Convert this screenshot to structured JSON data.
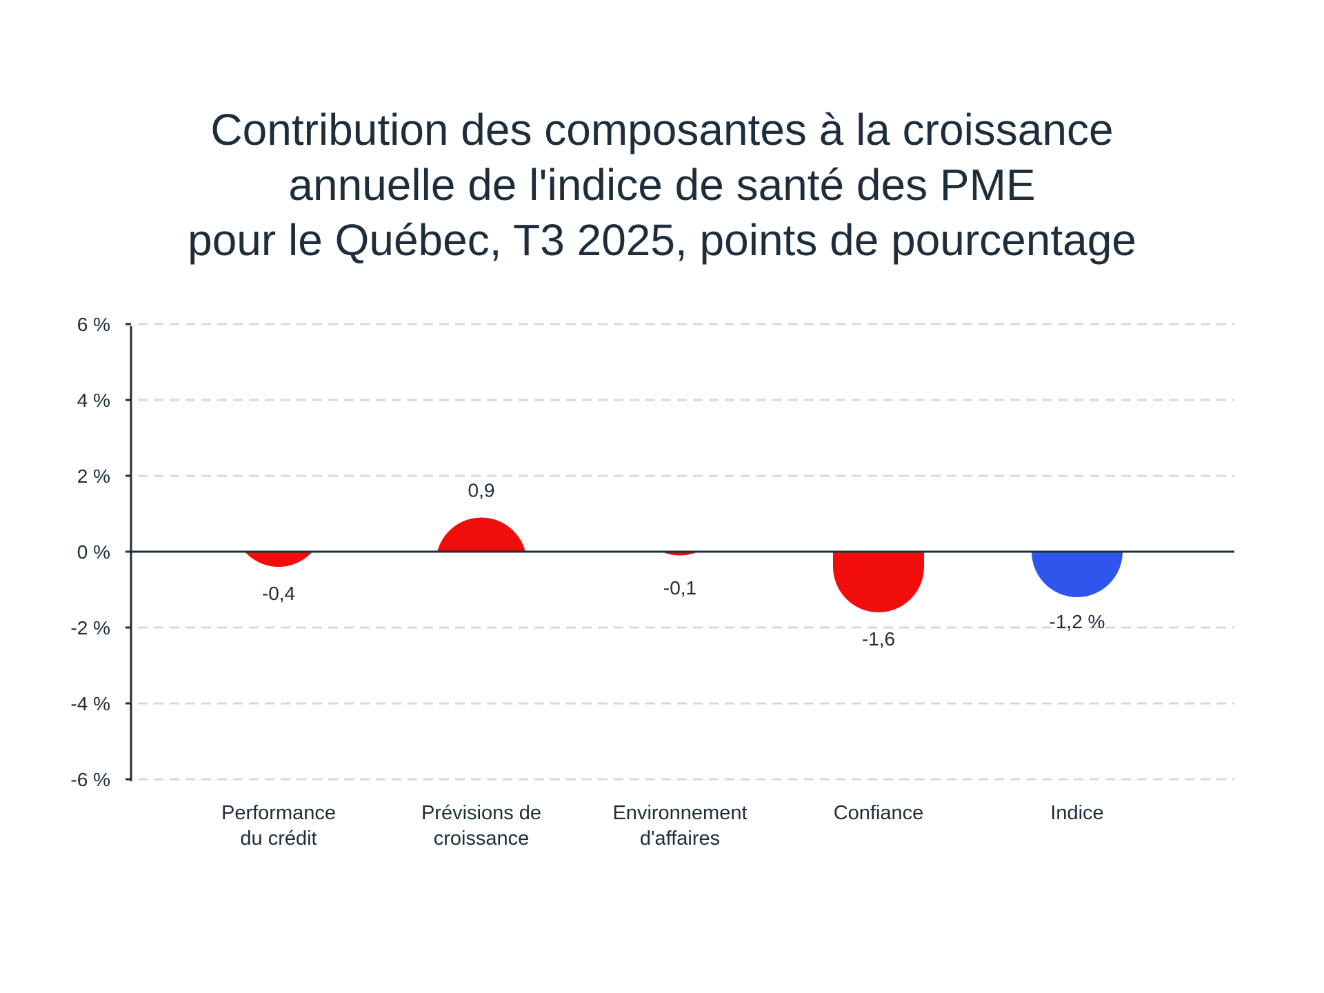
{
  "chart_data": {
    "type": "bar",
    "title_lines": [
      "Contribution des composantes à la croissance",
      "annuelle de l'indice de santé des PME",
      "pour le Québec, T3 2025, points de pourcentage"
    ],
    "categories": [
      [
        "Performance",
        "du crédit"
      ],
      [
        "Prévisions de",
        "croissance"
      ],
      [
        "Environnement",
        "d'affaires"
      ],
      [
        "Confiance"
      ],
      [
        "Indice"
      ]
    ],
    "values": [
      -0.4,
      0.9,
      -0.1,
      -1.6,
      -1.2
    ],
    "data_labels": [
      "-0,4",
      "0,9",
      "-0,1",
      "-1,6",
      "-1,2 %"
    ],
    "y_ticks": [
      6,
      4,
      2,
      0,
      -2,
      -4,
      -6
    ],
    "y_tick_labels": [
      "6 %",
      "4 %",
      "2 %",
      "0 %",
      "-2 %",
      "-4 %",
      "-6 %"
    ],
    "ylim": [
      -6,
      6
    ],
    "grid": "dashed horizontal",
    "colors": {
      "component": "#f20d0d",
      "index": "#2f55ec",
      "axis": "#1e2d3b",
      "grid": "#d9d9d9",
      "text": "#1e2d3b"
    },
    "xlabel": "",
    "ylabel": ""
  }
}
